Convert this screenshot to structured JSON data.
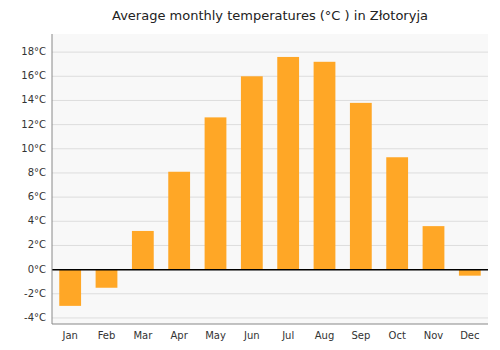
{
  "chart_data": {
    "type": "bar",
    "title": "Average monthly temperatures (°C ) in Złotoryja",
    "categories": [
      "Jan",
      "Feb",
      "Mar",
      "Apr",
      "May",
      "Jun",
      "Jul",
      "Aug",
      "Sep",
      "Oct",
      "Nov",
      "Dec"
    ],
    "values": [
      -3.0,
      -1.5,
      3.2,
      8.1,
      12.6,
      16.0,
      17.6,
      17.2,
      13.8,
      9.3,
      3.6,
      -0.5
    ],
    "color": "#FFA726",
    "ylim": [
      -4.5,
      19.5
    ],
    "yticks": [
      {
        "value": -4,
        "label": "-4°C"
      },
      {
        "value": -2,
        "label": "-2°C"
      },
      {
        "value": 0,
        "label": "0°C"
      },
      {
        "value": 2,
        "label": "2°C"
      },
      {
        "value": 4,
        "label": "4°C"
      },
      {
        "value": 6,
        "label": "6°C"
      },
      {
        "value": 8,
        "label": "8°C"
      },
      {
        "value": 10,
        "label": "10°C"
      },
      {
        "value": 12,
        "label": "12°C"
      },
      {
        "value": 14,
        "label": "14°C"
      },
      {
        "value": 16,
        "label": "16°C"
      },
      {
        "value": 18,
        "label": "18°C"
      }
    ],
    "grid": true
  }
}
